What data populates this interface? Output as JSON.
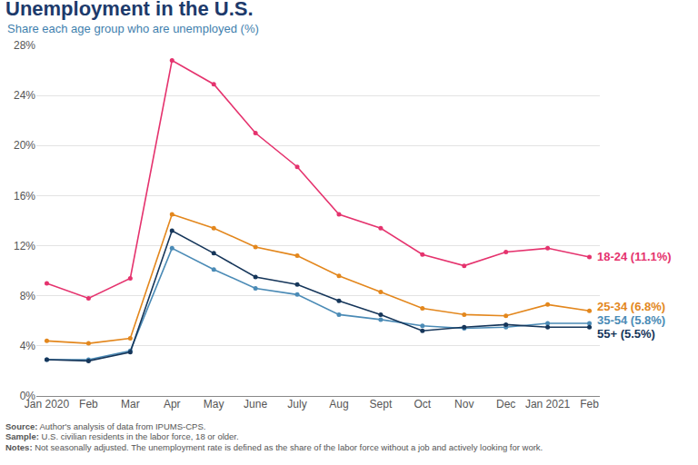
{
  "chart_data": {
    "type": "line",
    "title": "Unemployment in the U.S.",
    "subtitle": "Share each age group who are unemployed (%)",
    "categories": [
      "Jan 2020",
      "Feb",
      "Mar",
      "Apr",
      "May",
      "June",
      "July",
      "Aug",
      "Sept",
      "Oct",
      "Nov",
      "Dec",
      "Jan 2021",
      "Feb"
    ],
    "series": [
      {
        "name": "18-24 (11.1%)",
        "color": "#e5336e",
        "values": [
          9.0,
          7.8,
          9.4,
          26.8,
          24.9,
          21.0,
          18.3,
          14.5,
          13.4,
          11.3,
          10.4,
          11.5,
          11.8,
          11.1
        ]
      },
      {
        "name": "25-34 (6.8%)",
        "color": "#e3871d",
        "values": [
          4.4,
          4.2,
          4.6,
          14.5,
          13.4,
          11.9,
          11.2,
          9.6,
          8.3,
          7.0,
          6.5,
          6.4,
          7.3,
          6.8
        ]
      },
      {
        "name": "35-54 (5.8%)",
        "color": "#4b8bb6",
        "values": [
          2.9,
          2.9,
          3.6,
          11.8,
          10.1,
          8.6,
          8.1,
          6.5,
          6.1,
          5.6,
          5.4,
          5.5,
          5.8,
          5.8
        ]
      },
      {
        "name": "55+ (5.5%)",
        "color": "#16365a",
        "values": [
          2.9,
          2.8,
          3.5,
          13.2,
          11.4,
          9.5,
          8.9,
          7.6,
          6.5,
          5.2,
          5.5,
          5.7,
          5.5,
          5.5
        ]
      }
    ],
    "ylim": [
      0,
      28
    ],
    "yticks": [
      {
        "value": 0,
        "label": "0%"
      },
      {
        "value": 4,
        "label": "4%"
      },
      {
        "value": 8,
        "label": "8%"
      },
      {
        "value": 12,
        "label": "12%"
      },
      {
        "value": 16,
        "label": "16%"
      },
      {
        "value": 20,
        "label": "20%"
      },
      {
        "value": 24,
        "label": "24%"
      },
      {
        "value": 28,
        "label": "28%"
      }
    ],
    "grid": true,
    "marker": "circle",
    "line_style": "solid",
    "notes": [
      "Source: Author's analysis of data from IPUMS-CPS.",
      "Sample: U.S. civilian residents in the labor force, 18 or older.",
      "Notes: Not seasonally adjusted. The unemployment rate is defined as the share of the labor force without a job and actively looking for work."
    ]
  }
}
